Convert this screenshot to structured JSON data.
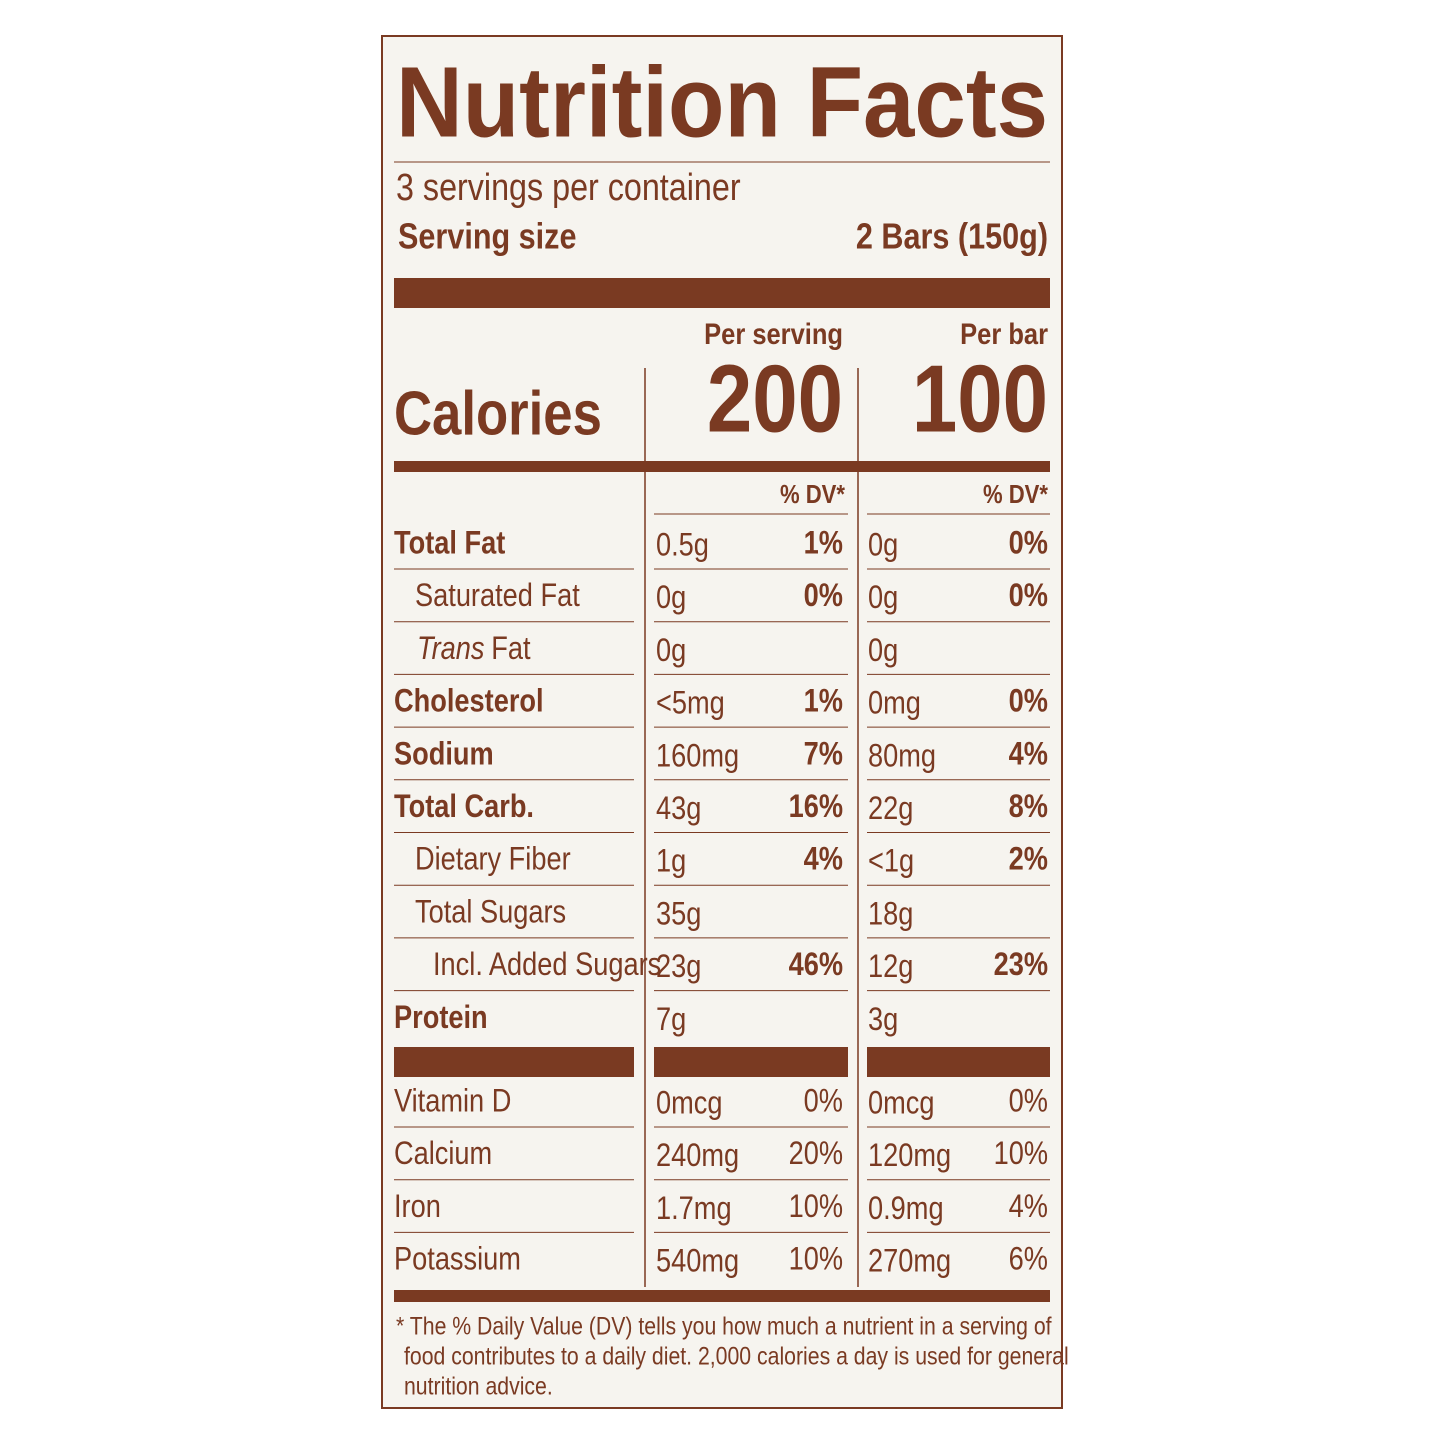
{
  "title": "Nutrition Facts",
  "servings": "3 servings per container",
  "serving_size": {
    "label": "Serving size",
    "value": "2 Bars (150g)"
  },
  "columns": [
    "Per serving",
    "Per bar"
  ],
  "calories": {
    "label": "Calories",
    "values": [
      "200",
      "100"
    ]
  },
  "dv_header": [
    "% DV*",
    "% DV*"
  ],
  "nutrients": [
    {
      "name": "Total Fat",
      "bold": true,
      "indent": 0,
      "serving": {
        "amount": "0.5g",
        "dv": "1%"
      },
      "bar": {
        "amount": "0g",
        "dv": "0%"
      }
    },
    {
      "name": "Saturated Fat",
      "bold": false,
      "indent": 1,
      "serving": {
        "amount": "0g",
        "dv": "0%"
      },
      "bar": {
        "amount": "0g",
        "dv": "0%"
      }
    },
    {
      "name_italic": "Trans",
      "name": "Fat",
      "bold": false,
      "indent": 1,
      "serving": {
        "amount": "0g"
      },
      "bar": {
        "amount": "0g"
      }
    },
    {
      "name": "Cholesterol",
      "bold": true,
      "indent": 0,
      "serving": {
        "amount": "<5mg",
        "dv": "1%"
      },
      "bar": {
        "amount": "0mg",
        "dv": "0%"
      }
    },
    {
      "name": "Sodium",
      "bold": true,
      "indent": 0,
      "serving": {
        "amount": "160mg",
        "dv": "7%"
      },
      "bar": {
        "amount": "80mg",
        "dv": "4%"
      }
    },
    {
      "name": "Total Carb.",
      "bold": true,
      "indent": 0,
      "serving": {
        "amount": "43g",
        "dv": "16%"
      },
      "bar": {
        "amount": "22g",
        "dv": "8%"
      }
    },
    {
      "name": "Dietary Fiber",
      "bold": false,
      "indent": 1,
      "serving": {
        "amount": "1g",
        "dv": "4%"
      },
      "bar": {
        "amount": "<1g",
        "dv": "2%"
      }
    },
    {
      "name": "Total Sugars",
      "bold": false,
      "indent": 1,
      "serving": {
        "amount": "35g"
      },
      "bar": {
        "amount": "18g"
      }
    },
    {
      "name": "Incl. Added Sugars",
      "bold": false,
      "indent": 2,
      "serving": {
        "amount": "23g",
        "dv": "46%"
      },
      "bar": {
        "amount": "12g",
        "dv": "23%"
      }
    },
    {
      "name": "Protein",
      "bold": true,
      "indent": 0,
      "serving": {
        "amount": "7g"
      },
      "bar": {
        "amount": "3g"
      }
    }
  ],
  "vitamins": [
    {
      "name": "Vitamin D",
      "serving": {
        "amount": "0mcg",
        "dv": "0%"
      },
      "bar": {
        "amount": "0mcg",
        "dv": "0%"
      }
    },
    {
      "name": "Calcium",
      "serving": {
        "amount": "240mg",
        "dv": "20%"
      },
      "bar": {
        "amount": "120mg",
        "dv": "10%"
      }
    },
    {
      "name": "Iron",
      "serving": {
        "amount": "1.7mg",
        "dv": "10%"
      },
      "bar": {
        "amount": "0.9mg",
        "dv": "4%"
      }
    },
    {
      "name": "Potassium",
      "serving": {
        "amount": "540mg",
        "dv": "10%"
      },
      "bar": {
        "amount": "270mg",
        "dv": "6%"
      }
    }
  ],
  "footnote": [
    "* The % Daily Value (DV) tells you how much a nutrient in a serving of",
    "food contributes to a daily diet. 2,000 calories a day is used for general",
    "nutrition advice."
  ]
}
